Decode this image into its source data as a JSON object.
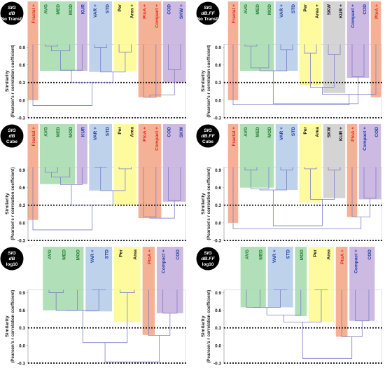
{
  "y_axis": {
    "label_lines": [
      "Similarity",
      "(Pearson's r correlation coefficient)"
    ],
    "ticks": [
      0.9,
      0.6,
      0.3,
      0.0,
      -0.3
    ],
    "tick_labels": [
      "0.9",
      "0.6",
      "0.3",
      "0.0",
      "-0.3"
    ],
    "threshold_lines": [
      0.3,
      -0.3
    ]
  },
  "colors": {
    "red": "#f4a889",
    "green": "#a8dcb0",
    "purple": "#c8b2df",
    "blue": "#b8cdea",
    "yellow": "#fdfb94",
    "gray": "#cfcfcf",
    "label_red": "#e8261c",
    "label_green": "#1d7a2e",
    "label_blue": "#1f3c9e",
    "label_black": "#111111",
    "tree": "#7b7fc6"
  },
  "chart_data": [
    {
      "type": "dendrogram",
      "badge": {
        "line1": "SIG",
        "line2": "dB",
        "line3": "No Transf."
      },
      "ylim": [
        -0.3,
        1.05
      ],
      "leaves": [
        {
          "label": "Fractal +",
          "group": "red"
        },
        {
          "label": "AVG",
          "group": "green"
        },
        {
          "label": "MED",
          "group": "green"
        },
        {
          "label": "MOD",
          "group": "green"
        },
        {
          "label": "KUR",
          "group": "purple"
        },
        {
          "label": "VAR +",
          "group": "blue"
        },
        {
          "label": "STD",
          "group": "blue"
        },
        {
          "label": "Per",
          "group": "yellow"
        },
        {
          "label": "Area +",
          "group": "yellow"
        },
        {
          "label": "PtoA +",
          "group": "red"
        },
        {
          "label": "Compact +",
          "group": "red"
        },
        {
          "label": "COD",
          "group": "purple"
        },
        {
          "label": "SKW +",
          "group": "purple"
        }
      ],
      "bands": [
        {
          "from": 0,
          "to": 0,
          "color": "red",
          "bottom": 0.0
        },
        {
          "from": 1,
          "to": 3,
          "color": "green",
          "bottom": 0.5
        },
        {
          "from": 4,
          "to": 4,
          "color": "purple",
          "bottom": 0.5
        },
        {
          "from": 5,
          "to": 6,
          "color": "blue",
          "bottom": 0.48
        },
        {
          "from": 7,
          "to": 8,
          "color": "yellow",
          "bottom": 0.5
        },
        {
          "from": 9,
          "to": 10,
          "color": "red",
          "bottom": 0.05
        },
        {
          "from": 11,
          "to": 12,
          "color": "purple",
          "bottom": 0.3
        }
      ],
      "merges": [
        [
          1,
          2,
          0.92
        ],
        [
          13,
          3,
          0.84
        ],
        [
          5,
          6,
          0.9
        ],
        [
          14,
          4,
          0.51
        ],
        [
          7,
          8,
          0.82
        ],
        [
          15,
          17,
          0.48
        ],
        [
          9,
          10,
          0.05
        ],
        [
          11,
          12,
          0.52
        ],
        [
          16,
          18,
          0.3
        ],
        [
          19,
          20,
          0.09
        ],
        [
          0,
          21,
          -0.09
        ]
      ]
    },
    {
      "type": "dendrogram",
      "badge": {
        "line1": "SIG",
        "line2": "dB.FF",
        "line3": "No Transf."
      },
      "ylim": [
        -0.3,
        1.05
      ],
      "leaves": [
        {
          "label": "Fractal +",
          "group": "red"
        },
        {
          "label": "AVG",
          "group": "green"
        },
        {
          "label": "MED",
          "group": "green"
        },
        {
          "label": "MOD",
          "group": "green"
        },
        {
          "label": "VAR +",
          "group": "blue"
        },
        {
          "label": "STD",
          "group": "blue"
        },
        {
          "label": "Per",
          "group": "yellow"
        },
        {
          "label": "Area +",
          "group": "yellow"
        },
        {
          "label": "SKW",
          "group": "gray"
        },
        {
          "label": "KUR +",
          "group": "gray"
        },
        {
          "label": "Compact +",
          "group": "purple"
        },
        {
          "label": "COD",
          "group": "purple"
        },
        {
          "label": "PtoA +",
          "group": "red"
        }
      ],
      "bands": [
        {
          "from": 0,
          "to": 0,
          "color": "red",
          "bottom": 0.0
        },
        {
          "from": 1,
          "to": 3,
          "color": "green",
          "bottom": 0.5
        },
        {
          "from": 4,
          "to": 5,
          "color": "blue",
          "bottom": 0.5
        },
        {
          "from": 6,
          "to": 7,
          "color": "yellow",
          "bottom": 0.25
        },
        {
          "from": 8,
          "to": 9,
          "color": "gray",
          "bottom": 0.12
        },
        {
          "from": 10,
          "to": 11,
          "color": "purple",
          "bottom": 0.38
        },
        {
          "from": 12,
          "to": 12,
          "color": "red",
          "bottom": 0.05
        }
      ],
      "merges": [
        [
          1,
          2,
          0.92
        ],
        [
          13,
          3,
          0.55
        ],
        [
          4,
          5,
          0.86
        ],
        [
          14,
          15,
          0.5
        ],
        [
          6,
          7,
          0.8
        ],
        [
          8,
          9,
          0.78
        ],
        [
          17,
          18,
          0.22
        ],
        [
          10,
          11,
          0.4
        ],
        [
          19,
          12,
          0.1
        ],
        [
          16,
          20,
          -0.06
        ],
        [
          0,
          21,
          -0.08
        ]
      ]
    },
    {
      "type": "dendrogram",
      "badge": {
        "line1": "SIG",
        "line2": "dB",
        "line3": "Cube"
      },
      "ylim": [
        -0.3,
        1.05
      ],
      "leaves": [
        {
          "label": "Fractal +",
          "group": "red"
        },
        {
          "label": "AVG",
          "group": "green"
        },
        {
          "label": "MED",
          "group": "green"
        },
        {
          "label": "MOD",
          "group": "green"
        },
        {
          "label": "KUR",
          "group": "purple"
        },
        {
          "label": "VAR +",
          "group": "blue"
        },
        {
          "label": "STD",
          "group": "blue"
        },
        {
          "label": "Per",
          "group": "yellow"
        },
        {
          "label": "Area",
          "group": "yellow"
        },
        {
          "label": "PtoA +",
          "group": "red"
        },
        {
          "label": "Compact +",
          "group": "red"
        },
        {
          "label": "COD",
          "group": "purple"
        },
        {
          "label": "SKW",
          "group": "purple"
        }
      ],
      "bands": [
        {
          "from": 0,
          "to": 0,
          "color": "red",
          "bottom": 0.05
        },
        {
          "from": 1,
          "to": 3,
          "color": "green",
          "bottom": 0.66
        },
        {
          "from": 4,
          "to": 4,
          "color": "purple",
          "bottom": 0.66
        },
        {
          "from": 5,
          "to": 6,
          "color": "blue",
          "bottom": 0.55
        },
        {
          "from": 7,
          "to": 8,
          "color": "yellow",
          "bottom": 0.3
        },
        {
          "from": 9,
          "to": 10,
          "color": "red",
          "bottom": 0.08
        },
        {
          "from": 11,
          "to": 12,
          "color": "purple",
          "bottom": 0.36
        }
      ],
      "merges": [
        [
          1,
          2,
          0.86
        ],
        [
          13,
          3,
          0.78
        ],
        [
          5,
          6,
          0.95
        ],
        [
          14,
          4,
          0.65
        ],
        [
          7,
          8,
          0.92
        ],
        [
          15,
          17,
          0.55
        ],
        [
          9,
          10,
          0.1
        ],
        [
          11,
          12,
          0.38
        ],
        [
          16,
          18,
          0.3
        ],
        [
          19,
          20,
          0.08
        ],
        [
          0,
          21,
          -0.12
        ]
      ]
    },
    {
      "type": "dendrogram",
      "badge": {
        "line1": "SIG",
        "line2": "dB.FF",
        "line3": "Cube"
      },
      "ylim": [
        -0.3,
        1.05
      ],
      "leaves": [
        {
          "label": "Fractal +",
          "group": "red"
        },
        {
          "label": "AVG",
          "group": "green"
        },
        {
          "label": "MED",
          "group": "green"
        },
        {
          "label": "MOD",
          "group": "green"
        },
        {
          "label": "VAR +",
          "group": "blue"
        },
        {
          "label": "STD",
          "group": "blue"
        },
        {
          "label": "Per",
          "group": "yellow"
        },
        {
          "label": "Area",
          "group": "yellow"
        },
        {
          "label": "SKW",
          "group": "gray"
        },
        {
          "label": "KUR +",
          "group": "gray"
        },
        {
          "label": "PtoA +",
          "group": "red"
        },
        {
          "label": "Compact +",
          "group": "purple"
        },
        {
          "label": "COD",
          "group": "purple"
        }
      ],
      "bands": [
        {
          "from": 0,
          "to": 0,
          "color": "red",
          "bottom": 0.0
        },
        {
          "from": 1,
          "to": 3,
          "color": "green",
          "bottom": 0.6
        },
        {
          "from": 4,
          "to": 5,
          "color": "blue",
          "bottom": 0.56
        },
        {
          "from": 6,
          "to": 7,
          "color": "yellow",
          "bottom": 0.35
        },
        {
          "from": 8,
          "to": 9,
          "color": "gray",
          "bottom": 0.42
        },
        {
          "from": 10,
          "to": 10,
          "color": "red",
          "bottom": 0.1
        },
        {
          "from": 11,
          "to": 12,
          "color": "purple",
          "bottom": 0.4
        }
      ],
      "merges": [
        [
          1,
          2,
          0.9
        ],
        [
          13,
          3,
          0.58
        ],
        [
          4,
          5,
          0.9
        ],
        [
          14,
          15,
          0.56
        ],
        [
          6,
          7,
          0.92
        ],
        [
          8,
          9,
          0.9
        ],
        [
          17,
          18,
          0.4
        ],
        [
          11,
          12,
          0.42
        ],
        [
          10,
          20,
          0.1
        ],
        [
          16,
          19,
          -0.05
        ],
        [
          0,
          21,
          -0.1
        ]
      ]
    },
    {
      "type": "dendrogram",
      "badge": {
        "line1": "SIG",
        "line2": "dB",
        "line3": "log10"
      },
      "ylim": [
        -0.3,
        1.05
      ],
      "leaves": [
        {
          "label": "AVG",
          "group": "green"
        },
        {
          "label": "MED",
          "group": "green"
        },
        {
          "label": "MOD",
          "group": "green"
        },
        {
          "label": "VAR +",
          "group": "blue"
        },
        {
          "label": "STD",
          "group": "blue"
        },
        {
          "label": "Per",
          "group": "yellow"
        },
        {
          "label": "Area",
          "group": "yellow"
        },
        {
          "label": "PtoA +",
          "group": "red"
        },
        {
          "label": "Compact +",
          "group": "purple"
        },
        {
          "label": "COD",
          "group": "purple"
        }
      ],
      "bands": [
        {
          "from": 0,
          "to": 2,
          "color": "green",
          "bottom": 0.6
        },
        {
          "from": 3,
          "to": 4,
          "color": "blue",
          "bottom": 0.58
        },
        {
          "from": 5,
          "to": 6,
          "color": "yellow",
          "bottom": 0.4
        },
        {
          "from": 7,
          "to": 7,
          "color": "red",
          "bottom": 0.18
        },
        {
          "from": 8,
          "to": 9,
          "color": "purple",
          "bottom": 0.55
        }
      ],
      "merges": [
        [
          0,
          1,
          0.9
        ],
        [
          10,
          2,
          0.6
        ],
        [
          3,
          4,
          0.95
        ],
        [
          11,
          12,
          0.6
        ],
        [
          5,
          6,
          0.9
        ],
        [
          8,
          9,
          0.55
        ],
        [
          7,
          15,
          0.17
        ],
        [
          13,
          14,
          0.05
        ],
        [
          17,
          16,
          -0.28
        ]
      ]
    },
    {
      "type": "dendrogram",
      "badge": {
        "line1": "SIG",
        "line2": "dB.FF",
        "line3": "log10"
      },
      "ylim": [
        -0.3,
        1.05
      ],
      "leaves": [
        {
          "label": "AVG",
          "group": "green"
        },
        {
          "label": "MED",
          "group": "green"
        },
        {
          "label": "VAR +",
          "group": "blue"
        },
        {
          "label": "STD",
          "group": "blue"
        },
        {
          "label": "MOD",
          "group": "green"
        },
        {
          "label": "Per",
          "group": "yellow"
        },
        {
          "label": "Area",
          "group": "yellow"
        },
        {
          "label": "PtoA +",
          "group": "red"
        },
        {
          "label": "Compact +",
          "group": "purple"
        },
        {
          "label": "COD",
          "group": "purple"
        }
      ],
      "bands": [
        {
          "from": 0,
          "to": 1,
          "color": "green",
          "bottom": 0.65
        },
        {
          "from": 2,
          "to": 3,
          "color": "blue",
          "bottom": 0.65
        },
        {
          "from": 4,
          "to": 4,
          "color": "green",
          "bottom": 0.5
        },
        {
          "from": 5,
          "to": 6,
          "color": "yellow",
          "bottom": 0.4
        },
        {
          "from": 7,
          "to": 7,
          "color": "red",
          "bottom": 0.15
        },
        {
          "from": 8,
          "to": 9,
          "color": "purple",
          "bottom": 0.42
        }
      ],
      "merges": [
        [
          0,
          1,
          0.65
        ],
        [
          2,
          3,
          0.95
        ],
        [
          10,
          11,
          0.65
        ],
        [
          12,
          4,
          0.52
        ],
        [
          5,
          6,
          0.95
        ],
        [
          13,
          14,
          0.4
        ],
        [
          8,
          9,
          0.42
        ],
        [
          7,
          16,
          0.15
        ],
        [
          15,
          17,
          -0.22
        ]
      ]
    }
  ]
}
